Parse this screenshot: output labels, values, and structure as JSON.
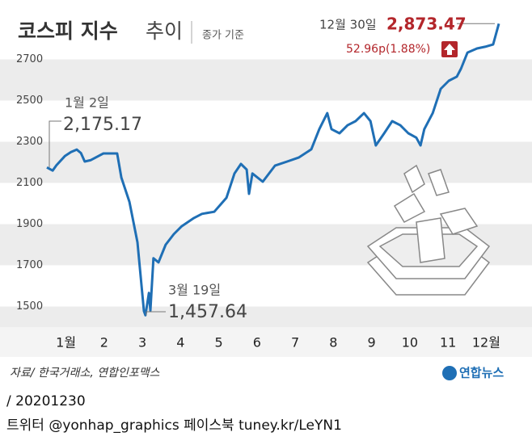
{
  "chart_data": {
    "type": "line",
    "title": "코스피 지수",
    "title_suffix": "추이",
    "subtitle": "종가 기준",
    "categories": [
      "1월",
      "2",
      "3",
      "4",
      "5",
      "6",
      "7",
      "8",
      "9",
      "10",
      "11",
      "12월"
    ],
    "xlim": [
      1,
      13
    ],
    "ylim": [
      1400,
      2800
    ],
    "yticks": [
      1500,
      1700,
      1900,
      2100,
      2300,
      2500,
      2700
    ],
    "grid": "bands",
    "series": [
      {
        "color": "#1f6fb5",
        "x": [
          1.0,
          1.15,
          1.25,
          1.47,
          1.63,
          1.78,
          1.89,
          1.99,
          2.14,
          2.48,
          2.84,
          2.95,
          3.16,
          3.37,
          3.54,
          3.58,
          3.67,
          3.71,
          3.79,
          3.92,
          4.11,
          4.32,
          4.53,
          4.85,
          5.06,
          5.38,
          5.7,
          5.91,
          6.08,
          6.23,
          6.29,
          6.38,
          6.65,
          6.97,
          7.29,
          7.6,
          7.92,
          8.13,
          8.34,
          8.45,
          8.66,
          8.87,
          9.08,
          9.3,
          9.47,
          9.61,
          9.83,
          10.04,
          10.25,
          10.46,
          10.67,
          10.78,
          10.88,
          11.1,
          11.31,
          11.52,
          11.73,
          11.84,
          12.01,
          12.26,
          12.47,
          12.68,
          12.83
        ],
        "values": [
          2175.17,
          2160,
          2186,
          2230,
          2250,
          2262,
          2245,
          2204,
          2210,
          2243,
          2243,
          2126,
          2008,
          1812,
          1478,
          1457.64,
          1566,
          1480,
          1734,
          1714,
          1800,
          1851,
          1890,
          1930,
          1950,
          1960,
          2028,
          2146,
          2192,
          2165,
          2047,
          2146,
          2106,
          2184,
          2204,
          2224,
          2263,
          2361,
          2439,
          2361,
          2341,
          2380,
          2400,
          2439,
          2400,
          2282,
          2341,
          2400,
          2380,
          2341,
          2320,
          2282,
          2361,
          2439,
          2557,
          2596,
          2616,
          2655,
          2733,
          2753,
          2761,
          2772,
          2873.47
        ]
      }
    ],
    "annotations": [
      {
        "label": "1월 2일",
        "value": 2175.17,
        "value_label": "2,175.17"
      },
      {
        "label": "3월 19일",
        "value": 1457.64,
        "value_label": "1,457.64"
      },
      {
        "label": "12월 30일",
        "value": 2873.47,
        "value_label": "2,873.47",
        "change": "52.96p(1.88%)"
      }
    ],
    "source": "자료/ 한국거래소, 연합인포맥스",
    "logo": "연합뉴스"
  },
  "footer": {
    "date": "/ 20201230",
    "links": "트위터 @yonhap_graphics  페이스북 tuney.kr/LeYN1"
  }
}
